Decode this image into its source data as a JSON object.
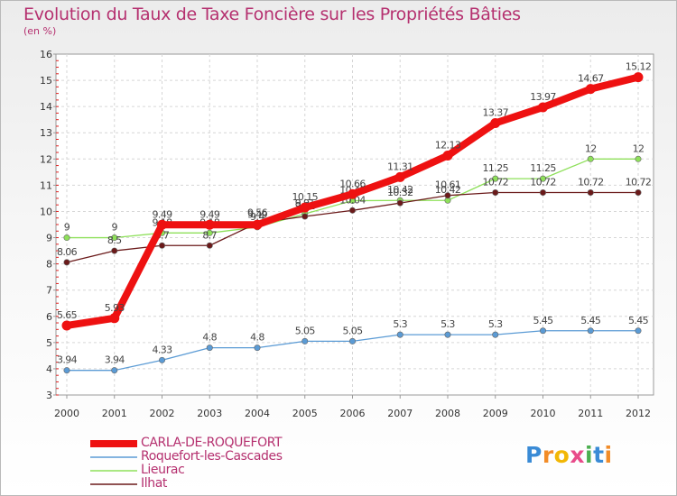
{
  "chart_data": {
    "type": "line",
    "title": "Evolution du Taux de Taxe Foncière sur les Propriétés Bâties",
    "unit_label": "(en %)",
    "categories": [
      "2000",
      "2001",
      "2002",
      "2003",
      "2004",
      "2005",
      "2006",
      "2007",
      "2008",
      "2009",
      "2010",
      "2011",
      "2012"
    ],
    "ylim": [
      3,
      16
    ],
    "yticks": [
      "3",
      "4",
      "5",
      "6",
      "7",
      "8",
      "9",
      "10",
      "11",
      "12",
      "13",
      "14",
      "15",
      "16"
    ],
    "series": [
      {
        "name": "Roquefort-les-Cascades",
        "color": "#5b9bd5",
        "values": [
          3.94,
          3.94,
          4.33,
          4.8,
          4.8,
          5.05,
          5.05,
          5.3,
          5.3,
          5.3,
          5.45,
          5.45,
          5.45
        ],
        "labels": [
          "3.94",
          "3.94",
          "4.33",
          "4.8",
          "4.8",
          "5.05",
          "5.05",
          "5.3",
          "5.3",
          "5.3",
          "5.45",
          "5.45",
          "5.45"
        ]
      },
      {
        "name": "Lieurac",
        "color": "#8ee05a",
        "values": [
          9,
          9,
          9.18,
          9.18,
          9.4,
          9.91,
          10.41,
          10.42,
          10.42,
          11.25,
          11.25,
          12,
          12
        ],
        "labels": [
          "9",
          "9",
          "9.18",
          "9.18",
          "9.4",
          "9.91",
          "10.41",
          "10.42",
          "10.42",
          "11.25",
          "11.25",
          "12",
          "12"
        ]
      },
      {
        "name": "Ilhat",
        "color": "#6b1a1a",
        "values": [
          8.06,
          8.5,
          8.7,
          8.7,
          9.56,
          9.81,
          10.04,
          10.32,
          10.61,
          10.72,
          10.72,
          10.72,
          10.72
        ],
        "labels": [
          "8.06",
          "8.5",
          "8.7",
          "8.7",
          "9.56",
          "9.81",
          "10.04",
          "10.32",
          "10.61",
          "10.72",
          "10.72",
          "10.72",
          "10.72"
        ]
      },
      {
        "name": "CARLA-DE-ROQUEFORT",
        "color": "#ee1111",
        "values": [
          5.65,
          5.93,
          9.49,
          9.49,
          9.49,
          10.15,
          10.66,
          11.31,
          12.13,
          13.37,
          13.97,
          14.67,
          15.12
        ],
        "labels": [
          "5.65",
          "5.93",
          "9.49",
          "9.49",
          "9.49",
          "10.15",
          "10.66",
          "11.31",
          "12.13",
          "13.37",
          "13.97",
          "14.67",
          "15.12"
        ]
      }
    ],
    "legend": [
      "CARLA-DE-ROQUEFORT",
      "Roquefort-les-Cascades",
      "Lieurac",
      "Ilhat"
    ]
  },
  "logo": {
    "text": "Proxiti",
    "letters": [
      "P",
      "r",
      "o",
      "x",
      "i",
      "t",
      "i"
    ],
    "colors": [
      "#3a8bd6",
      "#f28c28",
      "#f2b705",
      "#e84b8a",
      "#4caf50",
      "#3a8bd6",
      "#f28c28"
    ]
  }
}
